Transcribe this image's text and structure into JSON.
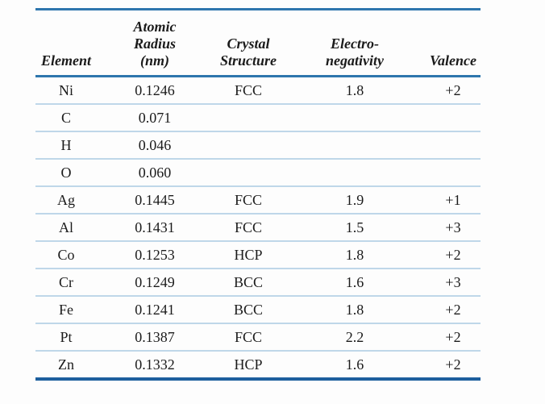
{
  "colors": {
    "rule_blue": "#2e76ad",
    "bottom_rule": "#1d5f9e",
    "row_separator": "#bfd7e9",
    "text": "#1b1b1b",
    "background": "#fdfdfd"
  },
  "table": {
    "columns": [
      {
        "label": "Element"
      },
      {
        "label": "Atomic\nRadius\n(nm)"
      },
      {
        "label": "Crystal\nStructure"
      },
      {
        "label": "Electro-\nnegativity"
      },
      {
        "label": "Valence"
      }
    ],
    "rows": [
      {
        "element": "Ni",
        "radius": "0.1246",
        "structure": "FCC",
        "electronegativity": "1.8",
        "valence": "+2"
      },
      {
        "element": "C",
        "radius": "0.071",
        "structure": "",
        "electronegativity": "",
        "valence": ""
      },
      {
        "element": "H",
        "radius": "0.046",
        "structure": "",
        "electronegativity": "",
        "valence": ""
      },
      {
        "element": "O",
        "radius": "0.060",
        "structure": "",
        "electronegativity": "",
        "valence": ""
      },
      {
        "element": "Ag",
        "radius": "0.1445",
        "structure": "FCC",
        "electronegativity": "1.9",
        "valence": "+1"
      },
      {
        "element": "Al",
        "radius": "0.1431",
        "structure": "FCC",
        "electronegativity": "1.5",
        "valence": "+3"
      },
      {
        "element": "Co",
        "radius": "0.1253",
        "structure": "HCP",
        "electronegativity": "1.8",
        "valence": "+2"
      },
      {
        "element": "Cr",
        "radius": "0.1249",
        "structure": "BCC",
        "electronegativity": "1.6",
        "valence": "+3"
      },
      {
        "element": "Fe",
        "radius": "0.1241",
        "structure": "BCC",
        "electronegativity": "1.8",
        "valence": "+2"
      },
      {
        "element": "Pt",
        "radius": "0.1387",
        "structure": "FCC",
        "electronegativity": "2.2",
        "valence": "+2"
      },
      {
        "element": "Zn",
        "radius": "0.1332",
        "structure": "HCP",
        "electronegativity": "1.6",
        "valence": "+2"
      }
    ]
  },
  "chart_data": {
    "type": "table",
    "columns": [
      "Element",
      "Atomic Radius (nm)",
      "Crystal Structure",
      "Electro-negativity",
      "Valence"
    ],
    "rows": [
      [
        "Ni",
        0.1246,
        "FCC",
        1.8,
        "+2"
      ],
      [
        "C",
        0.071,
        "",
        null,
        ""
      ],
      [
        "H",
        0.046,
        "",
        null,
        ""
      ],
      [
        "O",
        0.06,
        "",
        null,
        ""
      ],
      [
        "Ag",
        0.1445,
        "FCC",
        1.9,
        "+1"
      ],
      [
        "Al",
        0.1431,
        "FCC",
        1.5,
        "+3"
      ],
      [
        "Co",
        0.1253,
        "HCP",
        1.8,
        "+2"
      ],
      [
        "Cr",
        0.1249,
        "BCC",
        1.6,
        "+3"
      ],
      [
        "Fe",
        0.1241,
        "BCC",
        1.8,
        "+2"
      ],
      [
        "Pt",
        0.1387,
        "FCC",
        2.2,
        "+2"
      ],
      [
        "Zn",
        0.1332,
        "HCP",
        1.6,
        "+2"
      ]
    ]
  }
}
